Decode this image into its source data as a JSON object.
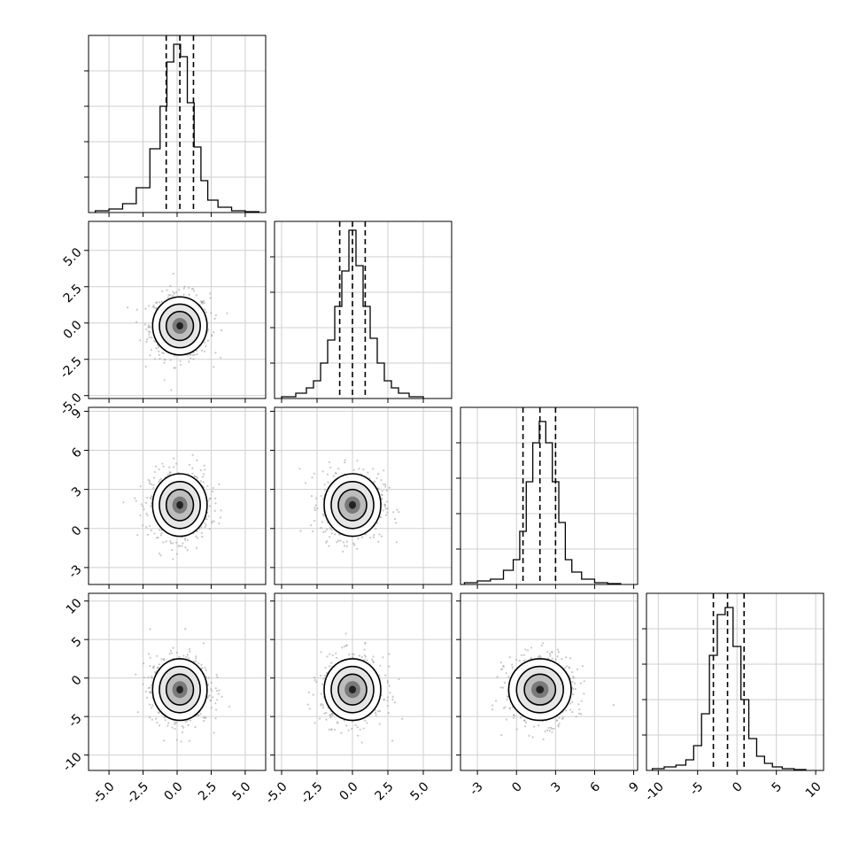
{
  "chart_data": [
    {
      "type": "histogram",
      "panel": "x0",
      "x": [
        -5.5,
        -4.5,
        -3.5,
        -2.5,
        -1.5,
        -1.0,
        -0.5,
        0.0,
        0.5,
        1.0,
        1.5,
        2.0,
        2.5,
        3.5,
        4.5,
        5.5
      ],
      "counts": [
        1,
        2,
        5,
        14,
        36,
        60,
        85,
        95,
        88,
        62,
        37,
        18,
        7,
        3,
        1,
        0.5
      ],
      "quantiles": [
        -0.8,
        0.2,
        1.2
      ],
      "xlim": [
        -6.5,
        6.5
      ],
      "ylim": [
        0,
        100
      ]
    },
    {
      "type": "scatter-contour",
      "panel": "x0 vs x1",
      "center": [
        0.2,
        -0.2
      ],
      "spread": [
        1.0,
        1.0
      ],
      "xlim": [
        -6.5,
        6.5
      ],
      "ylim": [
        -5.2,
        7.0
      ]
    },
    {
      "type": "histogram",
      "panel": "x1",
      "x": [
        -4.5,
        -3.5,
        -3.0,
        -2.5,
        -2.0,
        -1.5,
        -1.0,
        -0.5,
        0.0,
        0.5,
        1.0,
        1.5,
        2.0,
        2.5,
        3.0,
        3.5,
        4.5
      ],
      "counts": [
        1,
        3,
        6,
        10,
        20,
        33,
        52,
        72,
        95,
        75,
        52,
        34,
        20,
        10,
        6,
        3,
        1
      ],
      "quantiles": [
        -0.9,
        0.0,
        0.9
      ],
      "xlim": [
        -5.5,
        7.0
      ],
      "ylim": [
        0,
        100
      ]
    },
    {
      "type": "scatter-contour",
      "panel": "x0 vs x2",
      "center": [
        0.2,
        1.8
      ],
      "spread": [
        1.0,
        1.2
      ],
      "xlim": [
        -6.5,
        6.5
      ],
      "ylim": [
        -4.3,
        9.3
      ]
    },
    {
      "type": "scatter-contour",
      "panel": "x1 vs x2",
      "center": [
        0.0,
        1.8
      ],
      "spread": [
        1.0,
        1.2
      ],
      "xlim": [
        -5.5,
        7.0
      ],
      "ylim": [
        -4.3,
        9.3
      ]
    },
    {
      "type": "histogram",
      "panel": "x2",
      "x": [
        -3.5,
        -2.5,
        -1.5,
        -0.5,
        0.0,
        0.5,
        1.0,
        1.5,
        2.0,
        2.5,
        3.0,
        3.5,
        4.0,
        4.5,
        5.5,
        6.5,
        7.5
      ],
      "counts": [
        1,
        2,
        3,
        8,
        14,
        30,
        58,
        80,
        92,
        80,
        58,
        35,
        14,
        7,
        3,
        1,
        0.5
      ],
      "quantiles": [
        0.5,
        1.8,
        3.0
      ],
      "xlim": [
        -4.3,
        9.3
      ],
      "ylim": [
        0,
        100
      ]
    },
    {
      "type": "scatter-contour",
      "panel": "x0 vs x3",
      "center": [
        0.2,
        -1.5
      ],
      "spread": [
        1.0,
        2.0
      ],
      "xlim": [
        -6.5,
        6.5
      ],
      "ylim": [
        -12,
        11
      ]
    },
    {
      "type": "scatter-contour",
      "panel": "x1 vs x3",
      "center": [
        0.0,
        -1.5
      ],
      "spread": [
        1.0,
        2.0
      ],
      "xlim": [
        -5.5,
        7.0
      ],
      "ylim": [
        -12,
        11
      ]
    },
    {
      "type": "scatter-contour",
      "panel": "x2 vs x3",
      "center": [
        1.8,
        -1.5
      ],
      "spread": [
        1.2,
        2.0
      ],
      "xlim": [
        -4.3,
        9.3
      ],
      "ylim": [
        -12,
        11
      ]
    },
    {
      "type": "histogram",
      "panel": "x3",
      "x": [
        -10,
        -8.5,
        -7,
        -6,
        -5,
        -4,
        -3,
        -2,
        -1,
        0,
        1,
        2,
        3,
        4,
        5,
        6.5,
        8
      ],
      "counts": [
        1,
        2,
        3,
        6,
        14,
        32,
        65,
        88,
        92,
        70,
        40,
        18,
        8,
        4,
        2,
        1,
        0.5
      ],
      "quantiles": [
        -3.0,
        -1.2,
        0.9
      ],
      "xlim": [
        -11.5,
        11
      ],
      "ylim": [
        0,
        100
      ]
    }
  ],
  "ticks": {
    "x0": [
      "-5.0",
      "-2.5",
      "0.0",
      "2.5",
      "5.0"
    ],
    "x1": [
      "-5.0",
      "-2.5",
      "0.0",
      "2.5",
      "5.0"
    ],
    "x2": [
      "-3",
      "0",
      "3",
      "6",
      "9"
    ],
    "x3": [
      "-10",
      "-5",
      "0",
      "5",
      "10"
    ]
  }
}
